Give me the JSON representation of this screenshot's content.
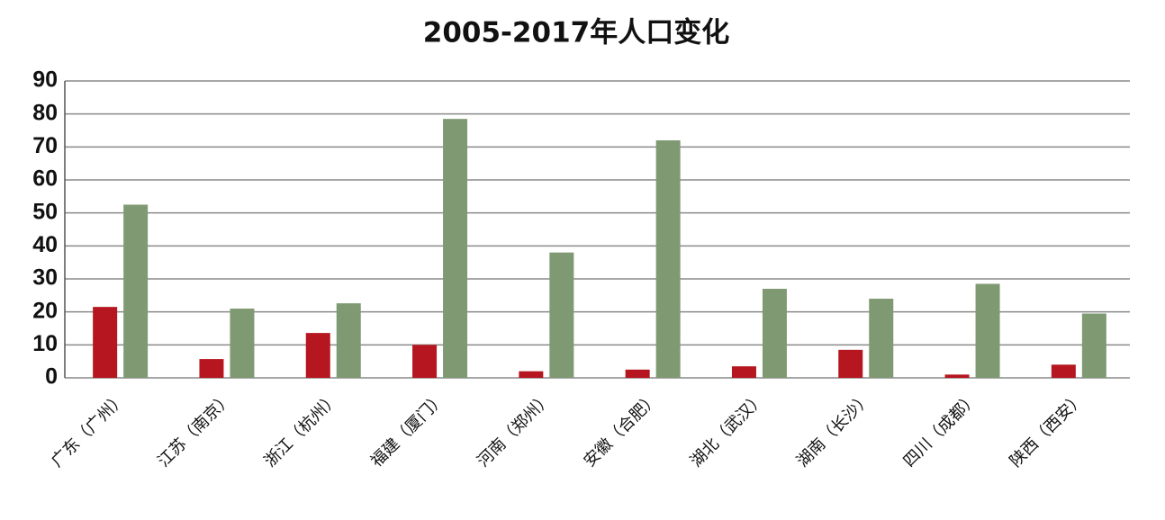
{
  "chart_data": {
    "type": "bar",
    "title": "2005-2017年人口变化",
    "categories": [
      "广东（广州）",
      "江苏（南京）",
      "浙江（杭州）",
      "福建（厦门）",
      "河南（郑州）",
      "安徽（合肥）",
      "湖北（武汉）",
      "湖南（长沙）",
      "四川（成都）",
      "陕西（西安）"
    ],
    "series": [
      {
        "color": "#b5161f",
        "values": [
          21.5,
          5.7,
          13.6,
          10,
          2,
          2.5,
          3.5,
          8.5,
          1,
          4
        ]
      },
      {
        "color": "#7f9a72",
        "values": [
          52.5,
          21,
          22.6,
          78.5,
          38,
          72,
          27,
          24,
          28.5,
          19.5
        ]
      }
    ],
    "ylim": [
      0,
      90
    ],
    "yticks": [
      0,
      10,
      20,
      30,
      40,
      50,
      60,
      70,
      80,
      90
    ],
    "grid": true
  }
}
